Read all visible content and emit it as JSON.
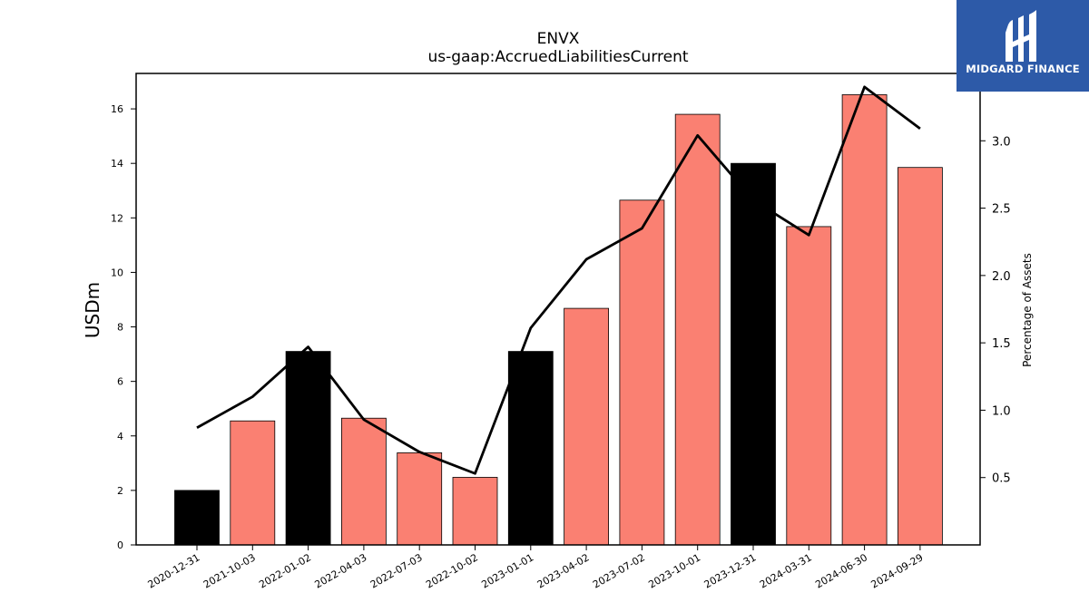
{
  "brand": {
    "name": "MIDGARD FINANCE",
    "background": "#2d5aa8"
  },
  "chart_data": {
    "type": "bar",
    "title": "ENVX",
    "subtitle": "us-gaap:AccruedLiabilitiesCurrent",
    "ylabel": "USDm",
    "y2label": "Percentage of Assets",
    "categories": [
      "2020-12-31",
      "2021-10-03",
      "2022-01-02",
      "2022-04-03",
      "2022-07-03",
      "2022-10-02",
      "2023-01-01",
      "2023-04-02",
      "2023-07-02",
      "2023-10-01",
      "2023-12-31",
      "2024-03-31",
      "2024-06-30",
      "2024-09-29"
    ],
    "values": [
      2.0,
      4.55,
      7.1,
      4.65,
      3.38,
      2.48,
      7.1,
      8.68,
      12.65,
      15.8,
      14.0,
      11.68,
      16.52,
      13.85
    ],
    "bar_colors": [
      "#000000",
      "#fa8072",
      "#000000",
      "#fa8072",
      "#fa8072",
      "#fa8072",
      "#000000",
      "#fa8072",
      "#fa8072",
      "#fa8072",
      "#000000",
      "#fa8072",
      "#fa8072",
      "#fa8072"
    ],
    "line_series": {
      "axis": "right",
      "values": [
        0.87,
        1.1,
        1.47,
        0.93,
        0.69,
        0.53,
        1.61,
        2.12,
        2.35,
        3.04,
        2.56,
        2.3,
        3.4,
        3.09
      ],
      "color": "#000000"
    },
    "ylim": [
      0,
      17.3
    ],
    "y2lim": [
      0,
      3.5
    ],
    "yticks": [
      0,
      2,
      4,
      6,
      8,
      10,
      12,
      14,
      16
    ],
    "y2ticks": [
      0.5,
      1.0,
      1.5,
      2.0,
      2.5,
      3.0
    ],
    "y2tick_labels": [
      "0.5",
      "1.0",
      "1.5",
      "2.0",
      "2.5",
      "3.0"
    ],
    "grid": false
  }
}
